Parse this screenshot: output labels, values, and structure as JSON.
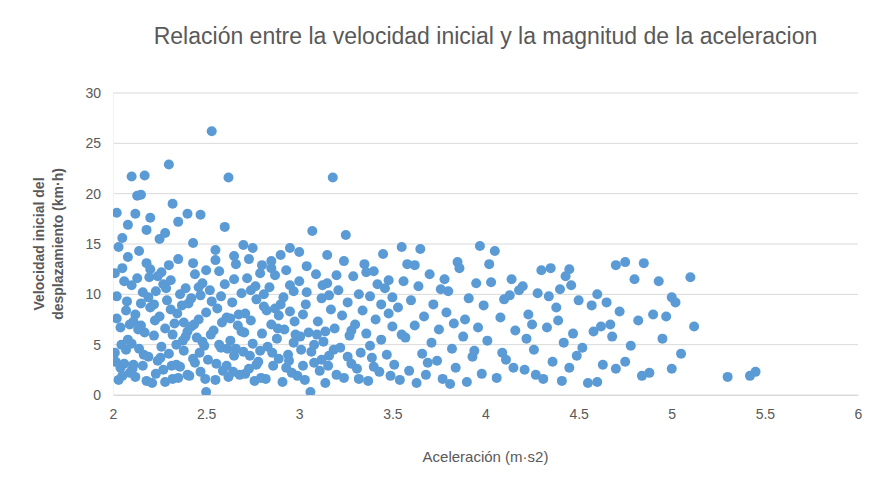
{
  "chart_data": {
    "type": "scatter",
    "title": "Relación entre la velocidad inicial y la magnitud de la aceleracion",
    "x_label": "Aceleración (m·s2)",
    "y_label": "Velocidad inicial del desplazamiento (km·h)",
    "color": "#5b9bd5",
    "marker": "circle",
    "grid": "y",
    "xlim": [
      2,
      6
    ],
    "ylim": [
      0,
      30
    ],
    "xticks": [
      2,
      2.5,
      3,
      3.5,
      4,
      4.5,
      5,
      5.5,
      6
    ],
    "yticks": [
      0,
      5,
      10,
      15,
      20,
      25,
      30
    ],
    "x": [
      2.53,
      2.3,
      2.1,
      2.17,
      2.62,
      3.18,
      2.13,
      2.15,
      2.02,
      2.32,
      2.4,
      2.47,
      2.12,
      3.07,
      3.25,
      2.6,
      2.05,
      2.5,
      3.06,
      5.3,
      5.42,
      5.45,
      5.1,
      5.12,
      5.05,
      5.0,
      4.97,
      5.0,
      4.93,
      4.85,
      4.75,
      4.8,
      4.9,
      4.88,
      4.72,
      4.75,
      4.7,
      4.67,
      4.62,
      4.6,
      4.55,
      4.6,
      4.5,
      4.45,
      4.42,
      4.45,
      4.35,
      4.4,
      4.3,
      4.25,
      4.2,
      4.15,
      4.1,
      4.05,
      3.97,
      3.85,
      3.78,
      3.65,
      3.55,
      3.58,
      3.45,
      3.4,
      2.35,
      2.2,
      2.43,
      2.08,
      2.28,
      2.55,
      2.7,
      2.65,
      2.9,
      2.95,
      2.85,
      3.0,
      3.15,
      3.35,
      2.75,
      2.8,
      2.18,
      2.25,
      2.01,
      2.02,
      2.03,
      2.04,
      2.05,
      2.06,
      2.07,
      2.08,
      2.09,
      2.1,
      2.11,
      2.12,
      2.13,
      2.14,
      2.15,
      2.16,
      2.17,
      2.18,
      2.19,
      2.2,
      2.21,
      2.22,
      2.23,
      2.24,
      2.25,
      2.26,
      2.27,
      2.28,
      2.29,
      2.3,
      2.31,
      2.32,
      2.33,
      2.34,
      2.35,
      2.36,
      2.37,
      2.38,
      2.39,
      2.4,
      2.41,
      2.42,
      2.43,
      2.44,
      2.45,
      2.46,
      2.47,
      2.48,
      2.49,
      2.5,
      2.02,
      2.04,
      2.06,
      2.08,
      2.1,
      2.12,
      2.14,
      2.16,
      2.18,
      2.2,
      2.22,
      2.24,
      2.26,
      2.28,
      2.3,
      2.32,
      2.34,
      2.36,
      2.38,
      2.4,
      2.42,
      2.44,
      2.46,
      2.48,
      2.5,
      2.03,
      2.07,
      2.11,
      2.15,
      2.19,
      2.23,
      2.27,
      2.31,
      2.35,
      2.39,
      2.43,
      2.47,
      2.01,
      2.05,
      2.09,
      2.51,
      2.52,
      2.54,
      2.55,
      2.56,
      2.57,
      2.58,
      2.59,
      2.6,
      2.61,
      2.62,
      2.63,
      2.64,
      2.65,
      2.66,
      2.67,
      2.68,
      2.69,
      2.7,
      2.71,
      2.72,
      2.73,
      2.74,
      2.75,
      2.76,
      2.77,
      2.78,
      2.79,
      2.8,
      2.81,
      2.82,
      2.83,
      2.84,
      2.85,
      2.86,
      2.87,
      2.88,
      2.89,
      2.9,
      2.91,
      2.92,
      2.93,
      2.94,
      2.95,
      2.96,
      2.97,
      2.98,
      2.99,
      3.0,
      2.53,
      2.57,
      2.61,
      2.65,
      2.69,
      2.73,
      2.77,
      2.81,
      2.85,
      2.89,
      2.93,
      2.97,
      2.55,
      2.63,
      2.71,
      2.79,
      2.87,
      2.95,
      2.58,
      2.66,
      2.74,
      3.01,
      3.02,
      3.03,
      3.04,
      3.05,
      3.08,
      3.09,
      3.1,
      3.11,
      3.12,
      3.13,
      3.14,
      3.15,
      3.16,
      3.17,
      3.19,
      3.2,
      3.21,
      3.22,
      3.23,
      3.24,
      3.26,
      3.27,
      3.28,
      3.29,
      3.3,
      3.31,
      3.32,
      3.33,
      3.34,
      3.36,
      3.37,
      3.38,
      3.39,
      3.41,
      3.42,
      3.43,
      3.44,
      3.46,
      3.47,
      3.48,
      3.49,
      3.5,
      3.04,
      3.12,
      3.2,
      3.28,
      3.36,
      3.44,
      3.08,
      3.16,
      3.24,
      3.32,
      3.4,
      3.48,
      3.02,
      3.14,
      3.26,
      3.38,
      3.5,
      3.51,
      3.53,
      3.54,
      3.56,
      3.57,
      3.59,
      3.6,
      3.62,
      3.63,
      3.64,
      3.66,
      3.67,
      3.68,
      3.7,
      3.71,
      3.72,
      3.74,
      3.75,
      3.77,
      3.79,
      3.8,
      3.82,
      3.83,
      3.84,
      3.86,
      3.88,
      3.9,
      3.91,
      3.93,
      3.95,
      3.96,
      3.98,
      3.99,
      3.55,
      3.62,
      3.69,
      3.76,
      3.81,
      3.89,
      3.94,
      4.01,
      4.03,
      4.06,
      4.08,
      4.11,
      4.13,
      4.16,
      4.18,
      4.21,
      4.23,
      4.26,
      4.28,
      4.31,
      4.33,
      4.36,
      4.38,
      4.41,
      4.43,
      4.47,
      4.49,
      4.02,
      4.09,
      4.14,
      4.22,
      4.27,
      4.34,
      4.39,
      4.46,
      4.52,
      4.57,
      4.63,
      4.65,
      4.68,
      4.7,
      4.78,
      4.82,
      4.84,
      4.95,
      5.02,
      4.58,
      2.015,
      2.045,
      2.075,
      2.105,
      2.135,
      2.165,
      2.195,
      2.225,
      2.255,
      2.285,
      2.315,
      2.345,
      2.375,
      2.405,
      2.435,
      2.465,
      2.495,
      2.525,
      2.555,
      2.585,
      2.615,
      2.645,
      2.675,
      2.705,
      2.735,
      2.765,
      2.795,
      2.825,
      2.855,
      2.885,
      2.915,
      2.945,
      2.975,
      3.005,
      3.035,
      3.065,
      3.095,
      3.125,
      3.155,
      3.185
    ],
    "values": [
      26.2,
      22.9,
      21.7,
      21.8,
      21.6,
      21.6,
      19.8,
      19.9,
      18.1,
      19.0,
      18.0,
      17.9,
      18.0,
      16.3,
      15.9,
      16.7,
      15.6,
      0.3,
      0.3,
      1.8,
      1.9,
      2.3,
      11.7,
      6.8,
      4.1,
      9.7,
      7.8,
      2.6,
      11.3,
      13.1,
      13.2,
      11.5,
      8.0,
      2.2,
      8.3,
      3.3,
      2.6,
      7.0,
      6.8,
      1.3,
      1.2,
      10.0,
      9.4,
      2.7,
      5.2,
      12.5,
      12.6,
      10.5,
      12.4,
      7.0,
      10.8,
      2.7,
      9.5,
      14.3,
      14.8,
      13.2,
      11.5,
      14.5,
      14.7,
      13.0,
      14.0,
      12.3,
      17.2,
      17.6,
      15.1,
      16.9,
      16.1,
      14.4,
      14.9,
      13.8,
      13.9,
      14.6,
      13.3,
      14.2,
      13.9,
      13.0,
      14.6,
      12.9,
      16.4,
      15.5,
      4.2,
      9.8,
      1.5,
      6.7,
      12.6,
      3.1,
      8.4,
      5.5,
      2.2,
      10.9,
      7.3,
      1.8,
      11.6,
      4.6,
      9.1,
      2.9,
      6.2,
      13.1,
      3.8,
      8.7,
      1.2,
      5.9,
      10.3,
      3.4,
      7.8,
      12.2,
      2.5,
      6.6,
      9.4,
      4.1,
      11.4,
      1.6,
      7.1,
      5.0,
      13.5,
      2.8,
      8.9,
      4.4,
      10.6,
      6.3,
      1.9,
      9.6,
      3.6,
      12.0,
      5.7,
      7.5,
      2.3,
      11.1,
      4.9,
      8.2,
      7.6,
      2.7,
      11.3,
      13.7,
      5.1,
      8.0,
      14.3,
      10.2,
      1.4,
      12.5,
      9.0,
      11.8,
      4.8,
      1.3,
      12.9,
      6.0,
      3.0,
      10.0,
      7.2,
      2.0,
      6.8,
      3.2,
      10.7,
      5.3,
      12.4,
      14.7,
      4.5,
      3.0,
      6.9,
      9.7,
      2.1,
      11.0,
      8.5,
      1.7,
      5.8,
      13.1,
      9.9,
      12.1,
      1.9,
      7.0,
      3.5,
      10.4,
      6.4,
      1.5,
      8.6,
      12.3,
      4.7,
      2.4,
      11.0,
      7.7,
      1.8,
      5.4,
      9.2,
      3.9,
      13.0,
      6.9,
      2.0,
      10.1,
      4.3,
      8.1,
      11.6,
      2.6,
      7.4,
      5.1,
      1.4,
      9.5,
      3.3,
      12.1,
      6.1,
      8.8,
      1.6,
      4.8,
      10.7,
      7.0,
      2.9,
      11.9,
      5.6,
      3.6,
      9.0,
      1.3,
      6.5,
      12.4,
      4.0,
      8.3,
      2.2,
      10.3,
      6.0,
      1.9,
      11.3,
      9.3,
      5.0,
      2.9,
      11.5,
      6.3,
      13.5,
      3.0,
      10.0,
      12.6,
      7.9,
      2.7,
      5.2,
      13.4,
      7.6,
      2.1,
      4.4,
      8.6,
      10.9,
      9.8,
      4.6,
      10.4,
      4.5,
      8.0,
      1.5,
      10.2,
      6.2,
      3.2,
      12.0,
      7.3,
      2.4,
      9.6,
      5.3,
      1.2,
      11.1,
      3.9,
      8.5,
      6.6,
      2.0,
      10.4,
      4.7,
      7.9,
      1.7,
      9.2,
      5.9,
      3.1,
      11.8,
      7.0,
      2.6,
      10.0,
      4.2,
      8.4,
      6.1,
      1.4,
      9.8,
      3.7,
      7.5,
      11.0,
      2.3,
      5.5,
      10.6,
      4.0,
      8.1,
      1.9,
      6.8,
      12.8,
      3.5,
      11.9,
      6.4,
      12.2,
      9.0,
      5.0,
      9.9,
      13.3,
      1.6,
      2.8,
      11.4,
      2.9,
      6.3,
      3.8,
      4.9,
      9.7,
      3.0,
      8.7,
      1.5,
      11.3,
      5.7,
      2.4,
      9.4,
      6.9,
      1.2,
      10.8,
      4.1,
      7.8,
      2.0,
      12.0,
      5.2,
      9.0,
      3.4,
      6.5,
      1.6,
      8.2,
      10.3,
      4.6,
      7.1,
      2.7,
      12.6,
      5.8,
      1.3,
      9.6,
      3.8,
      11.1,
      6.7,
      2.1,
      8.9,
      6.0,
      12.9,
      3.2,
      10.5,
      1.1,
      7.5,
      4.4,
      5.4,
      11.2,
      1.7,
      7.7,
      3.5,
      9.9,
      6.4,
      10.4,
      2.5,
      8.0,
      4.5,
      10.1,
      1.6,
      6.7,
      3.3,
      8.7,
      1.4,
      11.8,
      6.1,
      3.9,
      13.0,
      4.2,
      11.5,
      5.6,
      2.0,
      9.8,
      7.4,
      10.9,
      4.7,
      8.9,
      3.0,
      9.2,
      5.8,
      12.9,
      4.9,
      7.4,
      1.9,
      5.6,
      9.2,
      6.3,
      3.3,
      5.0,
      9.3,
      2.6,
      6.5,
      4.0,
      11.7,
      7.4,
      3.7,
      10.6,
      2.9,
      8.1,
      5.4,
      9.1,
      7.0,
      4.2,
      1.6,
      6.0,
      3.1,
      7.2,
      4.6,
      2.3,
      8.0,
      6.2,
      3.9,
      10.8,
      1.7,
      8.4,
      4.2,
      6.6,
      9.7,
      3.4,
      7.3,
      5.8,
      9.0,
      4.3,
      6.0,
      10.9,
      2.9,
      4.5
    ]
  }
}
